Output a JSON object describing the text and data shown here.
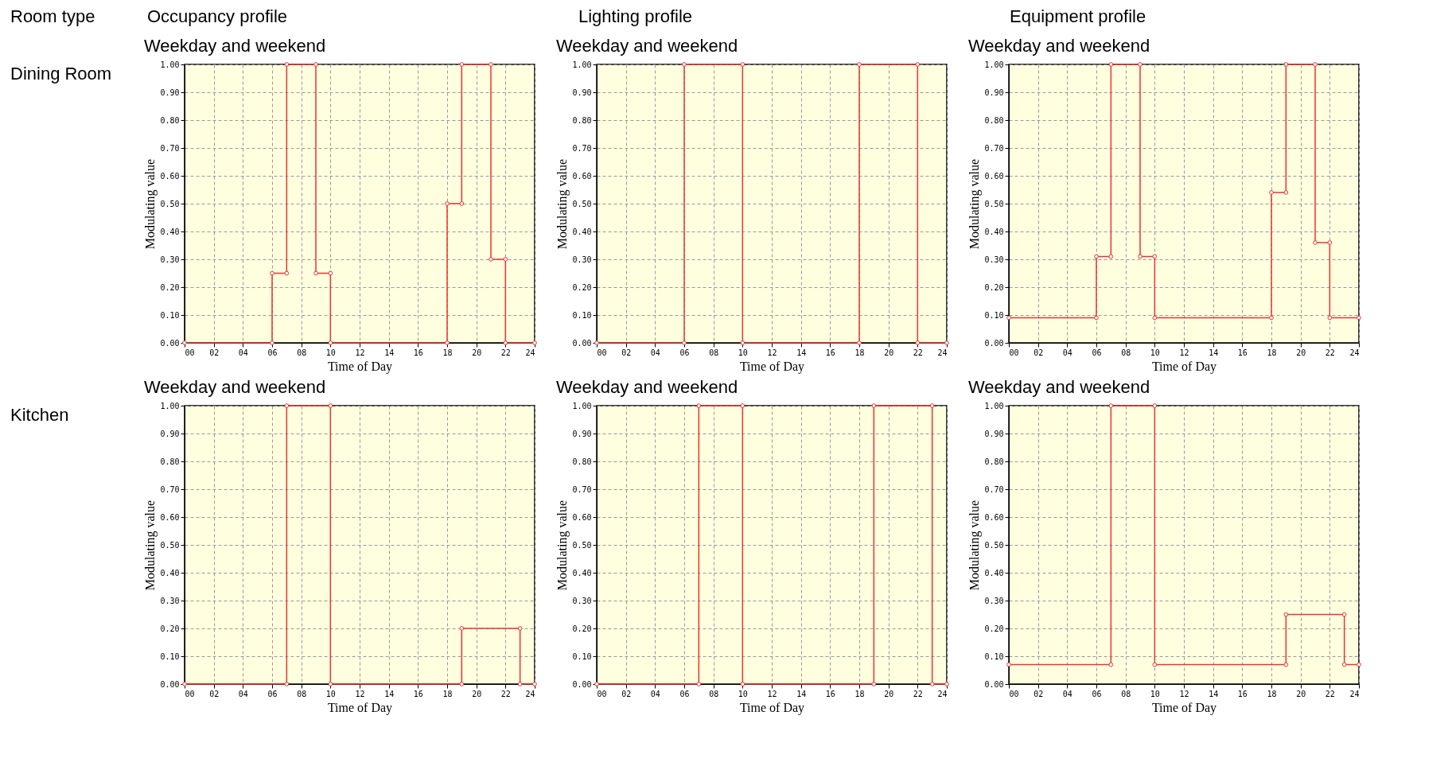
{
  "chart_data": [
    {
      "type": "other",
      "annotations": [
        "Room type",
        "Occupancy profile",
        "Lighting profile",
        "Equipment profile",
        "Dining Room",
        "Kitchen"
      ]
    },
    {
      "type": "line",
      "title": "Weekday and weekend",
      "xlabel": "Time of Day",
      "ylabel": "Modulating value",
      "xlim": [
        0,
        24
      ],
      "ylim": [
        0,
        1
      ],
      "xticks": [
        {
          "value": 0,
          "label": "00"
        },
        {
          "value": 2,
          "label": "02"
        },
        {
          "value": 4,
          "label": "04"
        },
        {
          "value": 6,
          "label": "06"
        },
        {
          "value": 8,
          "label": "08"
        },
        10,
        12,
        14,
        16,
        18,
        20,
        22,
        24
      ],
      "yticks": [
        {
          "value": 0,
          "label": "0.00"
        },
        {
          "value": 0.1,
          "label": "0.10"
        },
        {
          "value": 0.2,
          "label": "0.20"
        },
        {
          "value": 0.3,
          "label": "0.30"
        },
        {
          "value": 0.4,
          "label": "0.40"
        },
        {
          "value": 0.5,
          "label": "0.50"
        },
        {
          "value": 0.6,
          "label": "0.60"
        },
        {
          "value": 0.7,
          "label": "0.70"
        },
        {
          "value": 0.8,
          "label": "0.80"
        },
        {
          "value": 0.9,
          "label": "0.90"
        },
        {
          "value": 1,
          "label": "1.00"
        }
      ],
      "grid": true,
      "marker": "circle",
      "line_style": "solid",
      "series": [
        {
          "color": "#ee3333",
          "x": [
            0,
            6,
            6,
            7,
            7,
            9,
            9,
            10,
            10,
            18,
            18,
            19,
            19,
            21,
            21,
            22,
            22,
            24
          ],
          "values": [
            0,
            0,
            0.25,
            0.25,
            1,
            1,
            0.25,
            0.25,
            0,
            0,
            0.5,
            0.5,
            1,
            1,
            0.3,
            0.3,
            0,
            0
          ]
        }
      ]
    },
    {
      "type": "line",
      "title": "Weekday and weekend",
      "xlabel": "Time of Day",
      "ylabel": "Modulating value",
      "xlim": [
        0,
        24
      ],
      "ylim": [
        0,
        1
      ],
      "xticks": [
        {
          "value": 0,
          "label": "00"
        },
        {
          "value": 2,
          "label": "02"
        },
        {
          "value": 4,
          "label": "04"
        },
        {
          "value": 6,
          "label": "06"
        },
        {
          "value": 8,
          "label": "08"
        },
        10,
        12,
        14,
        16,
        18,
        20,
        22,
        24
      ],
      "yticks": [
        {
          "value": 0,
          "label": "0.00"
        },
        {
          "value": 0.1,
          "label": "0.10"
        },
        {
          "value": 0.2,
          "label": "0.20"
        },
        {
          "value": 0.3,
          "label": "0.30"
        },
        {
          "value": 0.4,
          "label": "0.40"
        },
        {
          "value": 0.5,
          "label": "0.50"
        },
        {
          "value": 0.6,
          "label": "0.60"
        },
        {
          "value": 0.7,
          "label": "0.70"
        },
        {
          "value": 0.8,
          "label": "0.80"
        },
        {
          "value": 0.9,
          "label": "0.90"
        },
        {
          "value": 1,
          "label": "1.00"
        }
      ],
      "grid": true,
      "marker": "circle",
      "line_style": "solid",
      "series": [
        {
          "color": "#ee3333",
          "x": [
            0,
            6,
            6,
            10,
            10,
            18,
            18,
            22,
            22,
            24
          ],
          "values": [
            0,
            0,
            1,
            1,
            0,
            0,
            1,
            1,
            0,
            0
          ]
        }
      ]
    },
    {
      "type": "line",
      "title": "Weekday and weekend",
      "xlabel": "Time of Day",
      "ylabel": "Modulating value",
      "xlim": [
        0,
        24
      ],
      "ylim": [
        0,
        1
      ],
      "xticks": [
        {
          "value": 0,
          "label": "00"
        },
        {
          "value": 2,
          "label": "02"
        },
        {
          "value": 4,
          "label": "04"
        },
        {
          "value": 6,
          "label": "06"
        },
        {
          "value": 8,
          "label": "08"
        },
        10,
        12,
        14,
        16,
        18,
        20,
        22,
        24
      ],
      "yticks": [
        {
          "value": 0,
          "label": "0.00"
        },
        {
          "value": 0.1,
          "label": "0.10"
        },
        {
          "value": 0.2,
          "label": "0.20"
        },
        {
          "value": 0.3,
          "label": "0.30"
        },
        {
          "value": 0.4,
          "label": "0.40"
        },
        {
          "value": 0.5,
          "label": "0.50"
        },
        {
          "value": 0.6,
          "label": "0.60"
        },
        {
          "value": 0.7,
          "label": "0.70"
        },
        {
          "value": 0.8,
          "label": "0.80"
        },
        {
          "value": 0.9,
          "label": "0.90"
        },
        {
          "value": 1,
          "label": "1.00"
        }
      ],
      "grid": true,
      "marker": "circle",
      "line_style": "solid",
      "series": [
        {
          "color": "#ee3333",
          "x": [
            0,
            6,
            6,
            7,
            7,
            9,
            9,
            10,
            10,
            18,
            18,
            19,
            19,
            21,
            21,
            22,
            22,
            24
          ],
          "values": [
            0.09,
            0.09,
            0.31,
            0.31,
            1,
            1,
            0.31,
            0.31,
            0.09,
            0.09,
            0.54,
            0.54,
            1,
            1,
            0.36,
            0.36,
            0.09,
            0.09
          ]
        }
      ]
    },
    {
      "type": "line",
      "title": "Weekday and weekend",
      "xlabel": "Time of Day",
      "ylabel": "Modulating value",
      "xlim": [
        0,
        24
      ],
      "ylim": [
        0,
        1
      ],
      "xticks": [
        {
          "value": 0,
          "label": "00"
        },
        {
          "value": 2,
          "label": "02"
        },
        {
          "value": 4,
          "label": "04"
        },
        {
          "value": 6,
          "label": "06"
        },
        {
          "value": 8,
          "label": "08"
        },
        10,
        12,
        14,
        16,
        18,
        20,
        22,
        24
      ],
      "yticks": [
        {
          "value": 0,
          "label": "0.00"
        },
        {
          "value": 0.1,
          "label": "0.10"
        },
        {
          "value": 0.2,
          "label": "0.20"
        },
        {
          "value": 0.3,
          "label": "0.30"
        },
        {
          "value": 0.4,
          "label": "0.40"
        },
        {
          "value": 0.5,
          "label": "0.50"
        },
        {
          "value": 0.6,
          "label": "0.60"
        },
        {
          "value": 0.7,
          "label": "0.70"
        },
        {
          "value": 0.8,
          "label": "0.80"
        },
        {
          "value": 0.9,
          "label": "0.90"
        },
        {
          "value": 1,
          "label": "1.00"
        }
      ],
      "grid": true,
      "marker": "circle",
      "line_style": "solid",
      "series": [
        {
          "color": "#ee3333",
          "x": [
            0,
            7,
            7,
            10,
            10,
            19,
            19,
            23,
            23,
            24
          ],
          "values": [
            0,
            0,
            1,
            1,
            0,
            0,
            0.2,
            0.2,
            0,
            0
          ]
        }
      ]
    },
    {
      "type": "line",
      "title": "Weekday and weekend",
      "xlabel": "Time of Day",
      "ylabel": "Modulating value",
      "xlim": [
        0,
        24
      ],
      "ylim": [
        0,
        1
      ],
      "xticks": [
        {
          "value": 0,
          "label": "00"
        },
        {
          "value": 2,
          "label": "02"
        },
        {
          "value": 4,
          "label": "04"
        },
        {
          "value": 6,
          "label": "06"
        },
        {
          "value": 8,
          "label": "08"
        },
        10,
        12,
        14,
        16,
        18,
        20,
        22,
        24
      ],
      "yticks": [
        {
          "value": 0,
          "label": "0.00"
        },
        {
          "value": 0.1,
          "label": "0.10"
        },
        {
          "value": 0.2,
          "label": "0.20"
        },
        {
          "value": 0.3,
          "label": "0.30"
        },
        {
          "value": 0.4,
          "label": "0.40"
        },
        {
          "value": 0.5,
          "label": "0.50"
        },
        {
          "value": 0.6,
          "label": "0.60"
        },
        {
          "value": 0.7,
          "label": "0.70"
        },
        {
          "value": 0.8,
          "label": "0.80"
        },
        {
          "value": 0.9,
          "label": "0.90"
        },
        {
          "value": 1,
          "label": "1.00"
        }
      ],
      "grid": true,
      "marker": "circle",
      "line_style": "solid",
      "series": [
        {
          "color": "#ee3333",
          "x": [
            0,
            7,
            7,
            10,
            10,
            19,
            19,
            23,
            23,
            24
          ],
          "values": [
            0,
            0,
            1,
            1,
            0,
            0,
            1,
            1,
            0,
            0
          ]
        }
      ]
    },
    {
      "type": "line",
      "title": "Weekday and weekend",
      "xlabel": "Time of Day",
      "ylabel": "Modulating value",
      "xlim": [
        0,
        24
      ],
      "ylim": [
        0,
        1
      ],
      "xticks": [
        {
          "value": 0,
          "label": "00"
        },
        {
          "value": 2,
          "label": "02"
        },
        {
          "value": 4,
          "label": "04"
        },
        {
          "value": 6,
          "label": "06"
        },
        {
          "value": 8,
          "label": "08"
        },
        10,
        12,
        14,
        16,
        18,
        20,
        22,
        24
      ],
      "yticks": [
        {
          "value": 0,
          "label": "0.00"
        },
        {
          "value": 0.1,
          "label": "0.10"
        },
        {
          "value": 0.2,
          "label": "0.20"
        },
        {
          "value": 0.3,
          "label": "0.30"
        },
        {
          "value": 0.4,
          "label": "0.40"
        },
        {
          "value": 0.5,
          "label": "0.50"
        },
        {
          "value": 0.6,
          "label": "0.60"
        },
        {
          "value": 0.7,
          "label": "0.70"
        },
        {
          "value": 0.8,
          "label": "0.80"
        },
        {
          "value": 0.9,
          "label": "0.90"
        },
        {
          "value": 1,
          "label": "1.00"
        }
      ],
      "grid": true,
      "marker": "circle",
      "line_style": "solid",
      "series": [
        {
          "color": "#ee3333",
          "x": [
            0,
            7,
            7,
            10,
            10,
            19,
            19,
            23,
            23,
            24
          ],
          "values": [
            0.07,
            0.07,
            1,
            1,
            0.07,
            0.07,
            0.25,
            0.25,
            0.07,
            0.07
          ]
        }
      ]
    }
  ]
}
